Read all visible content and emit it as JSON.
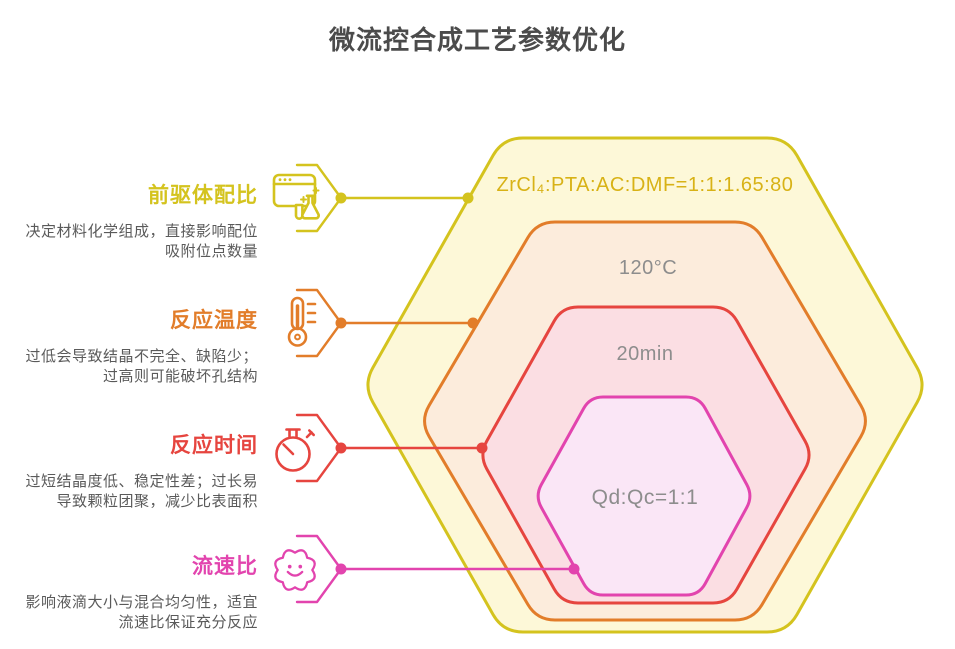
{
  "title": "微流控合成工艺参数优化",
  "gray_value_color": "#8d8d8d",
  "title_color": "#4b4b4b",
  "parameters": [
    {
      "label": "前驱体配比",
      "icon": "browser-flask-icon",
      "color": "#d4c31e",
      "hex_fill": "#fdf8d8",
      "value": "ZrCl₄:PTA:AC:DMF=1:1:1.65:80",
      "value_color": "#d8b216",
      "desc": [
        "决定材料化学组成，直接影响配位",
        "吸附位点数量"
      ]
    },
    {
      "label": "反应温度",
      "icon": "thermometer-icon",
      "color": "#e27d2a",
      "hex_fill": "#fcecdc",
      "value": "120°C",
      "value_color": "#8d8d8d",
      "desc": [
        "过低会导致结晶不完全、缺陷少；",
        "过高则可能破坏孔结构"
      ]
    },
    {
      "label": "反应时间",
      "icon": "stopwatch-icon",
      "color": "#e6453f",
      "hex_fill": "#fbdee3",
      "value": "20min",
      "value_color": "#8d8d8d",
      "desc": [
        "过短结晶度低、稳定性差；过长易",
        "导致颗粒团聚，减少比表面积"
      ]
    },
    {
      "label": "流速比",
      "icon": "flower-smiley-icon",
      "color": "#e244ae",
      "hex_fill": "#fae6f6",
      "value": "Qd:Qc=1:1",
      "value_color": "#8d8d8d",
      "desc": [
        "影响液滴大小与混合均匀性，适宜",
        "流速比保证充分反应"
      ]
    }
  ]
}
